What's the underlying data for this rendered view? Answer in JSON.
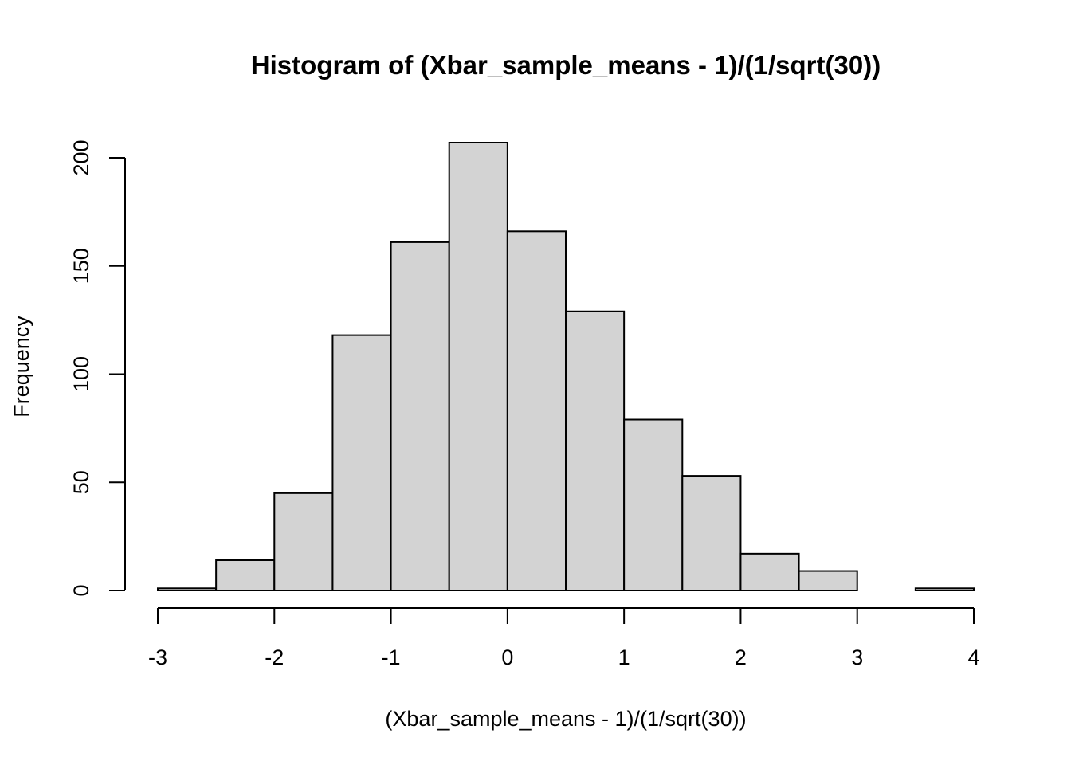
{
  "chart_data": {
    "type": "bar",
    "subtype": "histogram",
    "title": "Histogram of (Xbar_sample_means - 1)/(1/sqrt(30))",
    "xlabel": "(Xbar_sample_means - 1)/(1/sqrt(30))",
    "ylabel": "Frequency",
    "xlim": [
      -3,
      4
    ],
    "ylim": [
      0,
      207
    ],
    "x_ticks": [
      -3,
      -2,
      -1,
      0,
      1,
      2,
      3,
      4
    ],
    "y_ticks": [
      0,
      50,
      100,
      150,
      200
    ],
    "bin_width": 0.5,
    "bins": [
      {
        "from": -3.0,
        "to": -2.5,
        "count": 1
      },
      {
        "from": -2.5,
        "to": -2.0,
        "count": 14
      },
      {
        "from": -2.0,
        "to": -1.5,
        "count": 45
      },
      {
        "from": -1.5,
        "to": -1.0,
        "count": 118
      },
      {
        "from": -1.0,
        "to": -0.5,
        "count": 161
      },
      {
        "from": -0.5,
        "to": 0.0,
        "count": 207
      },
      {
        "from": 0.0,
        "to": 0.5,
        "count": 166
      },
      {
        "from": 0.5,
        "to": 1.0,
        "count": 129
      },
      {
        "from": 1.0,
        "to": 1.5,
        "count": 79
      },
      {
        "from": 1.5,
        "to": 2.0,
        "count": 53
      },
      {
        "from": 2.0,
        "to": 2.5,
        "count": 17
      },
      {
        "from": 2.5,
        "to": 3.0,
        "count": 9
      },
      {
        "from": 3.0,
        "to": 3.5,
        "count": 0
      },
      {
        "from": 3.5,
        "to": 4.0,
        "count": 1
      }
    ],
    "colors": {
      "bar_fill": "#d3d3d3",
      "bar_stroke": "#000000"
    },
    "grid": false,
    "legend": "none"
  }
}
